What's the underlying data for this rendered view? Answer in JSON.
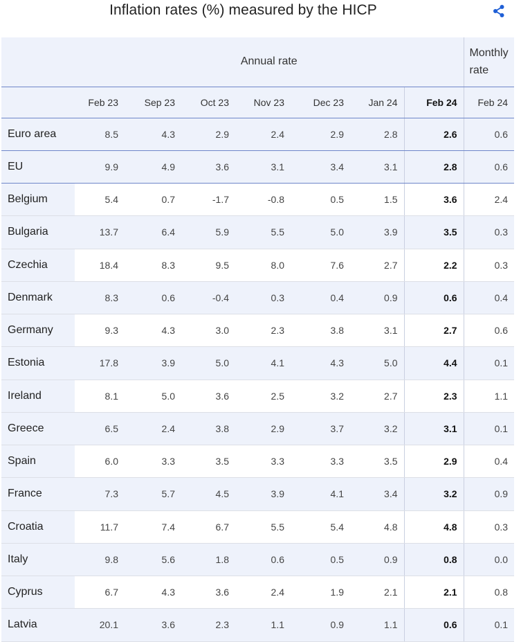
{
  "header": {
    "title": "Inflation rates (%) measured by the HICP",
    "share_icon": "share-icon"
  },
  "chart_data": {
    "type": "table",
    "title": "Inflation rates (%) measured by the HICP",
    "group_headers": {
      "annual": "Annual rate",
      "monthly": "Monthly rate"
    },
    "columns": [
      "Feb 23",
      "Sep 23",
      "Oct 23",
      "Nov 23",
      "Dec 23",
      "Jan 24",
      "Feb 24",
      "Feb 24"
    ],
    "highlight_column": 6,
    "rows": [
      {
        "label": "Euro area",
        "values": [
          "8.5",
          "4.3",
          "2.9",
          "2.4",
          "2.9",
          "2.8",
          "2.6",
          "0.6"
        ]
      },
      {
        "label": "EU",
        "values": [
          "9.9",
          "4.9",
          "3.6",
          "3.1",
          "3.4",
          "3.1",
          "2.8",
          "0.6"
        ]
      },
      {
        "label": "Belgium",
        "values": [
          "5.4",
          "0.7",
          "-1.7",
          "-0.8",
          "0.5",
          "1.5",
          "3.6",
          "2.4"
        ]
      },
      {
        "label": "Bulgaria",
        "values": [
          "13.7",
          "6.4",
          "5.9",
          "5.5",
          "5.0",
          "3.9",
          "3.5",
          "0.3"
        ]
      },
      {
        "label": "Czechia",
        "values": [
          "18.4",
          "8.3",
          "9.5",
          "8.0",
          "7.6",
          "2.7",
          "2.2",
          "0.3"
        ]
      },
      {
        "label": "Denmark",
        "values": [
          "8.3",
          "0.6",
          "-0.4",
          "0.3",
          "0.4",
          "0.9",
          "0.6",
          "0.4"
        ]
      },
      {
        "label": "Germany",
        "values": [
          "9.3",
          "4.3",
          "3.0",
          "2.3",
          "3.8",
          "3.1",
          "2.7",
          "0.6"
        ]
      },
      {
        "label": "Estonia",
        "values": [
          "17.8",
          "3.9",
          "5.0",
          "4.1",
          "4.3",
          "5.0",
          "4.4",
          "0.1"
        ]
      },
      {
        "label": "Ireland",
        "values": [
          "8.1",
          "5.0",
          "3.6",
          "2.5",
          "3.2",
          "2.7",
          "2.3",
          "1.1"
        ]
      },
      {
        "label": "Greece",
        "values": [
          "6.5",
          "2.4",
          "3.8",
          "2.9",
          "3.7",
          "3.2",
          "3.1",
          "0.1"
        ]
      },
      {
        "label": "Spain",
        "values": [
          "6.0",
          "3.3",
          "3.5",
          "3.3",
          "3.3",
          "3.5",
          "2.9",
          "0.4"
        ]
      },
      {
        "label": "France",
        "values": [
          "7.3",
          "5.7",
          "4.5",
          "3.9",
          "4.1",
          "3.4",
          "3.2",
          "0.9"
        ]
      },
      {
        "label": "Croatia",
        "values": [
          "11.7",
          "7.4",
          "6.7",
          "5.5",
          "5.4",
          "4.8",
          "4.8",
          "0.3"
        ]
      },
      {
        "label": "Italy",
        "values": [
          "9.8",
          "5.6",
          "1.8",
          "0.6",
          "0.5",
          "0.9",
          "0.8",
          "0.0"
        ]
      },
      {
        "label": "Cyprus",
        "values": [
          "6.7",
          "4.3",
          "3.6",
          "2.4",
          "1.9",
          "2.1",
          "2.1",
          "0.8"
        ]
      },
      {
        "label": "Latvia",
        "values": [
          "20.1",
          "3.6",
          "2.3",
          "1.1",
          "0.9",
          "1.1",
          "0.6",
          "0.1"
        ]
      }
    ]
  },
  "colors": {
    "header_bg": "#eef2fb",
    "rule": "#6e86c9",
    "share_icon": "#1f5fd6"
  }
}
